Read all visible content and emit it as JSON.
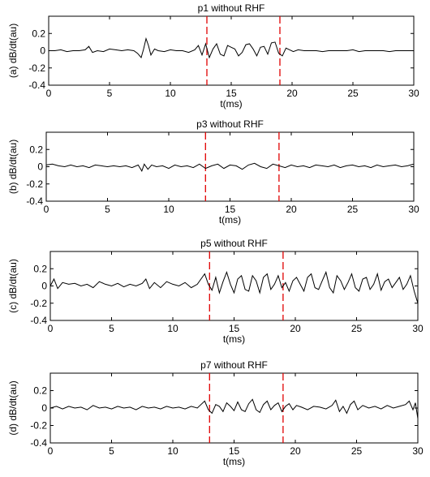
{
  "chart_data": [
    {
      "type": "line",
      "title": "p1 without RHF",
      "xlabel": "t(ms)",
      "ylabel": "(a)  dB/dt(au)",
      "xlim": [
        0,
        30
      ],
      "ylim": [
        -0.4,
        0.4
      ],
      "xticks": [
        "0",
        "5",
        "10",
        "15",
        "20",
        "25",
        "30"
      ],
      "yticks": [
        "0.2",
        "0",
        "-0.2",
        "-0.4"
      ],
      "vlines": [
        13,
        19
      ],
      "series": [
        {
          "x": [
            0,
            0.5,
            1,
            1.5,
            2,
            2.5,
            3,
            3.3,
            3.6,
            4,
            4.5,
            5,
            5.5,
            6,
            6.5,
            7,
            7.3,
            7.6,
            7.8,
            8,
            8.2,
            8.4,
            8.7,
            9,
            9.5,
            10,
            10.5,
            11,
            11.5,
            12,
            12.3,
            12.6,
            12.9,
            13.2,
            13.5,
            13.8,
            14.1,
            14.4,
            14.7,
            15,
            15.3,
            15.6,
            15.9,
            16.2,
            16.5,
            16.8,
            17.1,
            17.4,
            17.7,
            18,
            18.3,
            18.6,
            18.9,
            19.2,
            19.5,
            19.8,
            20.1,
            20.5,
            21,
            21.5,
            22,
            22.5,
            23,
            23.5,
            24,
            24.5,
            25,
            25.5,
            26,
            26.5,
            27,
            27.5,
            28,
            28.5,
            29,
            29.5,
            30
          ],
          "values": [
            0,
            0,
            0.01,
            -0.01,
            0,
            0,
            0.01,
            0.05,
            -0.02,
            0,
            -0.01,
            0.02,
            0.01,
            0,
            0.01,
            0,
            -0.03,
            -0.08,
            0.02,
            0.14,
            0.06,
            -0.05,
            0.02,
            0,
            -0.01,
            0.01,
            0,
            0,
            -0.02,
            0.01,
            0.06,
            -0.05,
            0.08,
            -0.08,
            0.02,
            0.08,
            -0.04,
            -0.06,
            0.06,
            0.04,
            0.02,
            -0.06,
            -0.02,
            0.07,
            0.08,
            0.02,
            -0.06,
            0.04,
            0.05,
            -0.04,
            0.09,
            0.1,
            -0.03,
            -0.06,
            0.03,
            0.01,
            -0.01,
            0.01,
            0,
            0,
            0,
            -0.01,
            0,
            0,
            0,
            0,
            0.01,
            -0.01,
            0,
            0,
            0,
            0,
            -0.01,
            0,
            0,
            0,
            0
          ]
        }
      ]
    },
    {
      "type": "line",
      "title": "p3 without RHF",
      "xlabel": "t(ms)",
      "ylabel": "(b)  dB/dt(au)",
      "xlim": [
        0,
        30
      ],
      "ylim": [
        -0.4,
        0.4
      ],
      "xticks": [
        "0",
        "5",
        "10",
        "15",
        "20",
        "25",
        "30"
      ],
      "yticks": [
        "0.2",
        "0",
        "-0.2",
        "-0.4"
      ],
      "vlines": [
        13,
        19
      ],
      "series": [
        {
          "x": [
            0,
            0.5,
            1,
            1.5,
            2,
            2.5,
            3,
            3.5,
            4,
            4.5,
            5,
            5.5,
            6,
            6.5,
            7,
            7.5,
            7.8,
            8,
            8.3,
            8.6,
            9,
            9.5,
            10,
            10.5,
            11,
            11.5,
            12,
            12.5,
            13,
            13.5,
            14,
            14.5,
            15,
            15.5,
            16,
            16.5,
            17,
            17.5,
            18,
            18.5,
            19,
            19.5,
            20,
            20.5,
            21,
            21.5,
            22,
            22.5,
            23,
            23.5,
            24,
            24.5,
            25,
            25.5,
            26,
            26.5,
            27,
            27.5,
            28,
            28.5,
            29,
            29.5,
            30
          ],
          "values": [
            0.02,
            0.03,
            0.01,
            0,
            0.02,
            0,
            0.01,
            -0.01,
            0.02,
            0.01,
            0,
            0.01,
            0,
            0.01,
            -0.01,
            0.02,
            -0.05,
            0.03,
            -0.03,
            0.02,
            0,
            0.01,
            -0.02,
            0.02,
            0,
            0.01,
            -0.01,
            0.03,
            -0.02,
            0.01,
            0.03,
            -0.02,
            0.02,
            0.01,
            -0.03,
            0.02,
            0.04,
            0,
            -0.02,
            0.03,
            0.01,
            -0.01,
            0.02,
            0,
            0.01,
            -0.01,
            0.02,
            0.01,
            0,
            0.02,
            -0.01,
            0.01,
            0.02,
            0,
            0.01,
            -0.01,
            0.02,
            0,
            0.01,
            0.02,
            0,
            0.01,
            0.03
          ]
        }
      ]
    },
    {
      "type": "line",
      "title": "p5 without RHF",
      "xlabel": "t(ms)",
      "ylabel": "(c)  dB/dt(au)",
      "xlim": [
        0,
        30
      ],
      "ylim": [
        -0.4,
        0.4
      ],
      "xticks": [
        "0",
        "5",
        "10",
        "15",
        "20",
        "25",
        "30"
      ],
      "yticks": [
        "0.2",
        "0",
        "-0.2",
        "-0.4"
      ],
      "vlines": [
        13,
        19
      ],
      "series": [
        {
          "x": [
            0,
            0.3,
            0.6,
            1,
            1.5,
            2,
            2.5,
            3,
            3.5,
            4,
            4.5,
            5,
            5.5,
            6,
            6.5,
            7,
            7.5,
            7.8,
            8.1,
            8.5,
            9,
            9.5,
            10,
            10.5,
            11,
            11.5,
            12,
            12.3,
            12.6,
            12.9,
            13.2,
            13.5,
            13.8,
            14.1,
            14.4,
            14.7,
            15,
            15.3,
            15.6,
            15.9,
            16.2,
            16.5,
            16.8,
            17.1,
            17.4,
            17.7,
            18,
            18.3,
            18.6,
            18.9,
            19.2,
            19.5,
            19.8,
            20.1,
            20.4,
            20.7,
            21,
            21.3,
            21.6,
            21.9,
            22.2,
            22.5,
            22.8,
            23.1,
            23.4,
            23.7,
            24,
            24.3,
            24.6,
            24.9,
            25.2,
            25.5,
            25.8,
            26.1,
            26.4,
            26.7,
            27,
            27.3,
            27.6,
            27.9,
            28.2,
            28.5,
            28.8,
            29.1,
            29.4,
            29.7,
            30
          ],
          "values": [
            0,
            0.08,
            -0.03,
            0.04,
            0.02,
            0.03,
            0,
            0.02,
            -0.02,
            0.05,
            0.02,
            0,
            0.03,
            -0.01,
            0.02,
            0,
            0.03,
            0.08,
            -0.03,
            0.04,
            -0.02,
            0.05,
            0.02,
            0,
            0.04,
            -0.02,
            0.02,
            0.08,
            0.14,
            0.02,
            -0.05,
            0.1,
            -0.08,
            0.05,
            0.16,
            0.02,
            -0.08,
            0.08,
            0.12,
            -0.04,
            -0.06,
            0.12,
            0.06,
            -0.08,
            0.1,
            0.14,
            -0.04,
            0.02,
            0.12,
            -0.02,
            0.04,
            -0.06,
            0.06,
            0.1,
            0.02,
            -0.06,
            0.1,
            0.14,
            -0.02,
            -0.04,
            0.06,
            0.16,
            -0.02,
            -0.08,
            0.12,
            0.06,
            -0.04,
            0.04,
            0.14,
            -0.02,
            -0.06,
            0.08,
            0.1,
            -0.04,
            0.02,
            0.14,
            -0.05,
            0.05,
            0.08,
            -0.02,
            0.04,
            0.1,
            -0.04,
            0.02,
            0.12,
            -0.06,
            -0.2
          ]
        }
      ]
    },
    {
      "type": "line",
      "title": "p7 without RHF",
      "xlabel": "t(ms)",
      "ylabel": "(d)  dB/dt(au)",
      "xlim": [
        0,
        30
      ],
      "ylim": [
        -0.4,
        0.4
      ],
      "xticks": [
        "0",
        "5",
        "10",
        "15",
        "20",
        "25",
        "30"
      ],
      "yticks": [
        "0.2",
        "0",
        "-0.2",
        "-0.4"
      ],
      "vlines": [
        13,
        19
      ],
      "series": [
        {
          "x": [
            0,
            0.5,
            1,
            1.5,
            2,
            2.5,
            3,
            3.5,
            4,
            4.5,
            5,
            5.5,
            6,
            6.5,
            7,
            7.5,
            8,
            8.5,
            9,
            9.5,
            10,
            10.5,
            11,
            11.5,
            12,
            12.3,
            12.6,
            12.9,
            13.2,
            13.5,
            13.8,
            14.1,
            14.4,
            14.7,
            15,
            15.3,
            15.6,
            15.9,
            16.2,
            16.5,
            16.8,
            17.1,
            17.4,
            17.7,
            18,
            18.3,
            18.6,
            18.9,
            19.2,
            19.5,
            19.8,
            20.1,
            20.5,
            21,
            21.5,
            22,
            22.5,
            23,
            23.3,
            23.6,
            23.9,
            24.2,
            24.5,
            24.8,
            25.1,
            25.5,
            26,
            26.5,
            27,
            27.5,
            28,
            28.5,
            29,
            29.3,
            29.6,
            29.8,
            30
          ],
          "values": [
            0,
            0.02,
            -0.01,
            0.02,
            0,
            0.01,
            -0.02,
            0.03,
            0,
            0.01,
            -0.01,
            0.02,
            0,
            0.01,
            -0.02,
            0.02,
            0,
            0.01,
            -0.01,
            0.02,
            0,
            0.01,
            -0.01,
            0.02,
            0,
            0.04,
            0.08,
            -0.02,
            -0.06,
            0.04,
            0.02,
            -0.04,
            0.06,
            0.02,
            -0.03,
            0.07,
            -0.02,
            -0.04,
            0.05,
            0.1,
            -0.02,
            -0.05,
            0.04,
            0.08,
            -0.02,
            0.03,
            0.06,
            -0.04,
            0.02,
            0.05,
            -0.02,
            0.03,
            0.01,
            -0.02,
            0.02,
            0.01,
            -0.01,
            0.03,
            0.09,
            -0.04,
            0.02,
            -0.06,
            0.04,
            0.08,
            -0.02,
            0.03,
            0,
            0.02,
            -0.01,
            0.03,
            0,
            0.02,
            0.04,
            0.08,
            -0.02,
            0.06,
            -0.12
          ]
        }
      ]
    }
  ]
}
